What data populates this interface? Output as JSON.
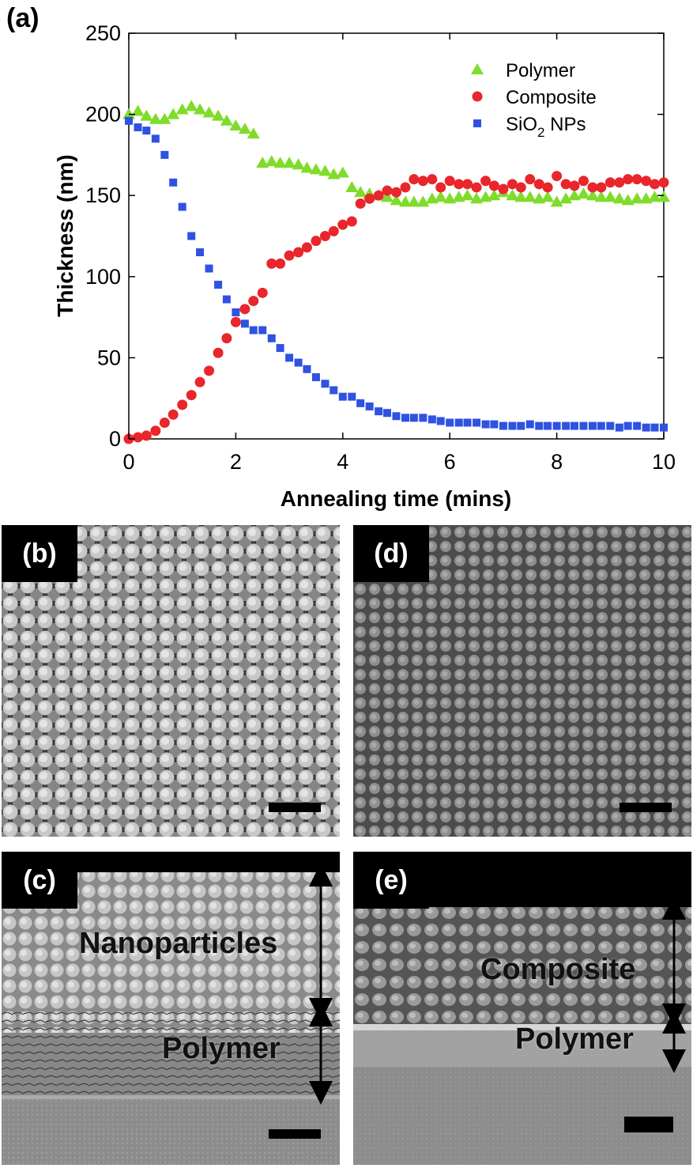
{
  "panels": {
    "a": "(a)",
    "b": "(b)",
    "c": "(c)",
    "d": "(d)",
    "e": "(e)"
  },
  "chart_data": {
    "type": "scatter",
    "xlabel": "Annealing time (mins)",
    "ylabel": "Thickness (nm)",
    "xlim": [
      0,
      10
    ],
    "ylim": [
      0,
      250
    ],
    "xticks": [
      "0",
      "2",
      "4",
      "6",
      "8",
      "10"
    ],
    "yticks": [
      "0",
      "50",
      "100",
      "150",
      "200",
      "250"
    ],
    "grid": false,
    "legend_position": "top-right",
    "series": [
      {
        "name": "Polymer",
        "marker": "triangle",
        "color": "#7fdc2a",
        "x": [
          0,
          0.17,
          0.33,
          0.5,
          0.67,
          0.83,
          1.0,
          1.17,
          1.33,
          1.5,
          1.67,
          1.83,
          2.0,
          2.17,
          2.33,
          2.5,
          2.67,
          2.83,
          3.0,
          3.17,
          3.33,
          3.5,
          3.67,
          3.83,
          4.0,
          4.17,
          4.33,
          4.5,
          4.67,
          4.83,
          5.0,
          5.17,
          5.33,
          5.5,
          5.67,
          5.83,
          6.0,
          6.17,
          6.33,
          6.5,
          6.67,
          6.83,
          7.0,
          7.17,
          7.33,
          7.5,
          7.67,
          7.83,
          8.0,
          8.17,
          8.33,
          8.5,
          8.67,
          8.83,
          9.0,
          9.17,
          9.33,
          9.5,
          9.67,
          9.83,
          10.0
        ],
        "y": [
          200,
          202,
          199,
          197,
          197,
          200,
          203,
          205,
          203,
          201,
          199,
          196,
          193,
          191,
          188,
          170,
          171,
          170,
          170,
          169,
          167,
          166,
          165,
          163,
          164,
          155,
          152,
          151,
          150,
          149,
          147,
          146,
          146,
          146,
          148,
          149,
          148,
          149,
          150,
          148,
          149,
          150,
          152,
          150,
          149,
          149,
          148,
          149,
          146,
          148,
          150,
          151,
          150,
          149,
          149,
          148,
          147,
          148,
          148,
          149,
          149
        ]
      },
      {
        "name": "Composite",
        "marker": "circle",
        "color": "#e8262b",
        "x": [
          0,
          0.17,
          0.33,
          0.5,
          0.67,
          0.83,
          1.0,
          1.17,
          1.33,
          1.5,
          1.67,
          1.83,
          2.0,
          2.17,
          2.33,
          2.5,
          2.67,
          2.83,
          3.0,
          3.17,
          3.33,
          3.5,
          3.67,
          3.83,
          4.0,
          4.17,
          4.33,
          4.5,
          4.67,
          4.83,
          5.0,
          5.17,
          5.33,
          5.5,
          5.67,
          5.83,
          6.0,
          6.17,
          6.33,
          6.5,
          6.67,
          6.83,
          7.0,
          7.17,
          7.33,
          7.5,
          7.67,
          7.83,
          8.0,
          8.17,
          8.33,
          8.5,
          8.67,
          8.83,
          9.0,
          9.17,
          9.33,
          9.5,
          9.67,
          9.83,
          10.0
        ],
        "y": [
          0,
          1,
          2,
          5,
          10,
          15,
          21,
          27,
          35,
          42,
          53,
          62,
          72,
          80,
          85,
          90,
          108,
          108,
          113,
          115,
          118,
          122,
          125,
          128,
          132,
          134,
          145,
          148,
          150,
          153,
          152,
          155,
          160,
          159,
          160,
          155,
          159,
          157,
          157,
          155,
          159,
          156,
          154,
          157,
          155,
          160,
          157,
          155,
          162,
          157,
          156,
          159,
          155,
          155,
          158,
          158,
          160,
          160,
          159,
          157,
          158
        ]
      },
      {
        "name": "SiO2 NPs",
        "marker": "square",
        "color": "#2f52e0",
        "x": [
          0,
          0.17,
          0.33,
          0.5,
          0.67,
          0.83,
          1.0,
          1.17,
          1.33,
          1.5,
          1.67,
          1.83,
          2.0,
          2.17,
          2.33,
          2.5,
          2.67,
          2.83,
          3.0,
          3.17,
          3.33,
          3.5,
          3.67,
          3.83,
          4.0,
          4.17,
          4.33,
          4.5,
          4.67,
          4.83,
          5.0,
          5.17,
          5.33,
          5.5,
          5.67,
          5.83,
          6.0,
          6.17,
          6.33,
          6.5,
          6.67,
          6.83,
          7.0,
          7.17,
          7.33,
          7.5,
          7.67,
          7.83,
          8.0,
          8.17,
          8.33,
          8.5,
          8.67,
          8.83,
          9.0,
          9.17,
          9.33,
          9.5,
          9.67,
          9.83,
          10.0
        ],
        "y": [
          196,
          192,
          190,
          185,
          175,
          158,
          143,
          125,
          115,
          105,
          95,
          86,
          78,
          71,
          67,
          67,
          62,
          56,
          50,
          47,
          43,
          38,
          34,
          30,
          26,
          26,
          22,
          20,
          17,
          16,
          14,
          13,
          13,
          13,
          12,
          11,
          10,
          10,
          10,
          10,
          9,
          9,
          8,
          8,
          8,
          9,
          8,
          8,
          8,
          8,
          8,
          8,
          8,
          8,
          8,
          7,
          8,
          8,
          7,
          7,
          7
        ]
      }
    ],
    "legend_labels": {
      "polymer": "Polymer",
      "composite": "Composite",
      "sio2_main": "SiO",
      "sio2_sub": "2",
      "sio2_rest": " NPs"
    }
  },
  "annotations": {
    "nanoparticles": "Nanoparticles",
    "polymer_c": "Polymer",
    "composite": "Composite",
    "polymer_e": "Polymer"
  },
  "colors": {
    "polymer": "#7fdc2a",
    "composite": "#e8262b",
    "sio2": "#2f52e0"
  }
}
